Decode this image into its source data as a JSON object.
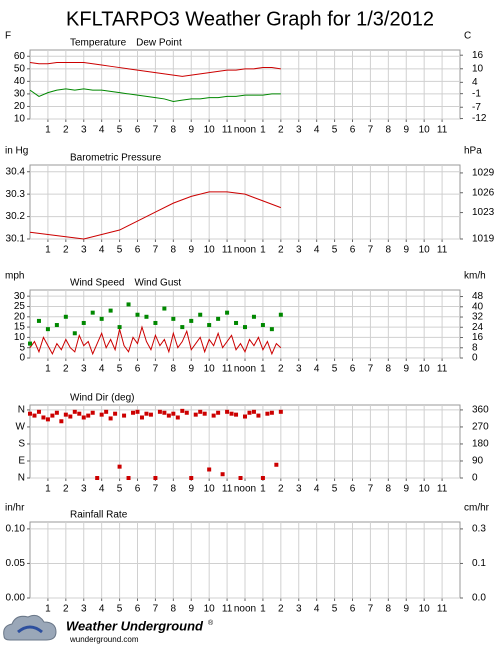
{
  "title": "KFLTARPO3 Weather Graph for 1/3/2012",
  "chart_data": [
    {
      "type": "line",
      "ylabel": "F",
      "y2label": "C",
      "xlim": [
        0,
        24
      ],
      "xticks": [
        1,
        2,
        3,
        4,
        5,
        6,
        7,
        8,
        9,
        10,
        11,
        {
          "value": 12,
          "label": "noon"
        },
        {
          "value": 13,
          "label": "1"
        },
        {
          "value": 14,
          "label": "2"
        },
        {
          "value": 15,
          "label": "3"
        },
        {
          "value": 16,
          "label": "4"
        },
        {
          "value": 17,
          "label": "5"
        },
        {
          "value": 18,
          "label": "6"
        },
        {
          "value": 19,
          "label": "7"
        },
        {
          "value": 20,
          "label": "8"
        },
        {
          "value": 21,
          "label": "9"
        },
        {
          "value": 22,
          "label": "10"
        },
        {
          "value": 23,
          "label": "11"
        }
      ],
      "ylim": [
        10,
        65
      ],
      "yticks": [
        60,
        50,
        40,
        30,
        20,
        10
      ],
      "y2lim": [
        -12.2,
        18.3
      ],
      "y2ticks": [
        16,
        10,
        4,
        -1,
        -7,
        -12
      ],
      "grid": true,
      "series": [
        {
          "name": "Temperature",
          "color": "#cc0000",
          "mode": "line",
          "x": [
            0,
            0.5,
            1,
            1.5,
            2,
            2.5,
            3,
            3.5,
            4,
            4.5,
            5,
            5.5,
            6,
            6.5,
            7,
            7.5,
            8,
            8.5,
            9,
            9.5,
            10,
            10.5,
            11,
            11.5,
            12,
            12.5,
            13,
            13.5,
            14
          ],
          "values": [
            55,
            54,
            54,
            55,
            55,
            55,
            55,
            54,
            53,
            52,
            51,
            50,
            49,
            48,
            47,
            46,
            45,
            44,
            45,
            46,
            47,
            48,
            49,
            49,
            50,
            50,
            51,
            51,
            50
          ]
        },
        {
          "name": "Dew Point",
          "color": "#008800",
          "mode": "line",
          "x": [
            0,
            0.5,
            1,
            1.5,
            2,
            2.5,
            3,
            3.5,
            4,
            4.5,
            5,
            5.5,
            6,
            6.5,
            7,
            7.5,
            8,
            8.5,
            9,
            9.5,
            10,
            10.5,
            11,
            11.5,
            12,
            12.5,
            13,
            13.5,
            14
          ],
          "values": [
            33,
            28,
            31,
            33,
            34,
            33,
            34,
            33,
            33,
            32,
            31,
            30,
            29,
            28,
            27,
            26,
            24,
            25,
            26,
            26,
            27,
            27,
            28,
            28,
            29,
            29,
            29,
            30,
            30
          ]
        }
      ]
    },
    {
      "type": "line",
      "ylabel": "in Hg",
      "y2label": "hPa",
      "xlim": [
        0,
        24
      ],
      "xticks": [
        1,
        2,
        3,
        4,
        5,
        6,
        7,
        8,
        9,
        10,
        11,
        {
          "value": 12,
          "label": "noon"
        },
        {
          "value": 13,
          "label": "1"
        },
        {
          "value": 14,
          "label": "2"
        },
        {
          "value": 15,
          "label": "3"
        },
        {
          "value": 16,
          "label": "4"
        },
        {
          "value": 17,
          "label": "5"
        },
        {
          "value": 18,
          "label": "6"
        },
        {
          "value": 19,
          "label": "7"
        },
        {
          "value": 20,
          "label": "8"
        },
        {
          "value": 21,
          "label": "9"
        },
        {
          "value": 22,
          "label": "10"
        },
        {
          "value": 23,
          "label": "11"
        }
      ],
      "ylim": [
        30.1,
        30.43
      ],
      "yticks": [
        30.4,
        30.3,
        30.2,
        30.1
      ],
      "y2lim": [
        1019,
        1030.2
      ],
      "y2ticks": [
        1029,
        1026,
        1023,
        1019
      ],
      "grid": true,
      "series": [
        {
          "name": "Barometric Pressure",
          "color": "#cc0000",
          "mode": "line",
          "x": [
            0,
            1,
            2,
            3,
            4,
            5,
            6,
            7,
            8,
            9,
            10,
            11,
            12,
            13,
            14
          ],
          "values": [
            30.13,
            30.12,
            30.11,
            30.1,
            30.12,
            30.14,
            30.18,
            30.22,
            30.26,
            30.29,
            30.31,
            30.31,
            30.3,
            30.27,
            30.24
          ]
        }
      ]
    },
    {
      "type": "line",
      "ylabel": "mph",
      "y2label": "km/h",
      "xlim": [
        0,
        24
      ],
      "xticks": [
        1,
        2,
        3,
        4,
        5,
        6,
        7,
        8,
        9,
        10,
        11,
        {
          "value": 12,
          "label": "noon"
        },
        {
          "value": 13,
          "label": "1"
        },
        {
          "value": 14,
          "label": "2"
        },
        {
          "value": 15,
          "label": "3"
        },
        {
          "value": 16,
          "label": "4"
        },
        {
          "value": 17,
          "label": "5"
        },
        {
          "value": 18,
          "label": "6"
        },
        {
          "value": 19,
          "label": "7"
        },
        {
          "value": 20,
          "label": "8"
        },
        {
          "value": 21,
          "label": "9"
        },
        {
          "value": 22,
          "label": "10"
        },
        {
          "value": 23,
          "label": "11"
        }
      ],
      "ylim": [
        0,
        33
      ],
      "yticks": [
        30,
        25,
        20,
        15,
        10,
        5,
        0
      ],
      "y2lim": [
        0,
        53.1
      ],
      "y2ticks": [
        48,
        40,
        32,
        24,
        16,
        8,
        0
      ],
      "grid": true,
      "series": [
        {
          "name": "Wind Speed",
          "color": "#cc0000",
          "mode": "line",
          "x": [
            0,
            0.25,
            0.5,
            0.75,
            1,
            1.25,
            1.5,
            1.75,
            2,
            2.25,
            2.5,
            2.75,
            3,
            3.25,
            3.5,
            3.75,
            4,
            4.25,
            4.5,
            4.75,
            5,
            5.25,
            5.5,
            5.75,
            6,
            6.25,
            6.5,
            6.75,
            7,
            7.25,
            7.5,
            7.75,
            8,
            8.25,
            8.5,
            8.75,
            9,
            9.25,
            9.5,
            9.75,
            10,
            10.25,
            10.5,
            10.75,
            11,
            11.25,
            11.5,
            11.75,
            12,
            12.25,
            12.5,
            12.75,
            13,
            13.25,
            13.5,
            13.75,
            14
          ],
          "values": [
            5,
            8,
            3,
            10,
            6,
            2,
            7,
            4,
            9,
            5,
            3,
            11,
            6,
            8,
            2,
            7,
            12,
            5,
            9,
            4,
            14,
            6,
            3,
            10,
            7,
            15,
            8,
            4,
            11,
            6,
            9,
            3,
            12,
            5,
            8,
            13,
            4,
            7,
            10,
            3,
            9,
            6,
            12,
            5,
            8,
            11,
            4,
            7,
            3,
            9,
            6,
            10,
            4,
            8,
            2,
            7,
            5
          ]
        },
        {
          "name": "Wind Gust",
          "color": "#008800",
          "mode": "markers",
          "x": [
            0,
            0.5,
            1,
            1.5,
            2,
            2.5,
            3,
            3.5,
            4,
            4.5,
            5,
            5.5,
            6,
            6.5,
            7,
            7.5,
            8,
            8.5,
            9,
            9.5,
            10,
            10.5,
            11,
            11.5,
            12,
            12.5,
            13,
            13.5,
            14
          ],
          "values": [
            7,
            18,
            14,
            16,
            20,
            12,
            17,
            22,
            19,
            23,
            15,
            26,
            21,
            20,
            17,
            24,
            19,
            15,
            18,
            21,
            16,
            19,
            22,
            17,
            15,
            20,
            16,
            14,
            21
          ]
        }
      ]
    },
    {
      "type": "scatter",
      "xlim": [
        0,
        24
      ],
      "xticks": [
        1,
        2,
        3,
        4,
        5,
        6,
        7,
        8,
        9,
        10,
        11,
        {
          "value": 12,
          "label": "noon"
        },
        {
          "value": 13,
          "label": "1"
        },
        {
          "value": 14,
          "label": "2"
        },
        {
          "value": 15,
          "label": "3"
        },
        {
          "value": 16,
          "label": "4"
        },
        {
          "value": 17,
          "label": "5"
        },
        {
          "value": 18,
          "label": "6"
        },
        {
          "value": 19,
          "label": "7"
        },
        {
          "value": 20,
          "label": "8"
        },
        {
          "value": 21,
          "label": "9"
        },
        {
          "value": 22,
          "label": "10"
        },
        {
          "value": 23,
          "label": "11"
        }
      ],
      "ylim": [
        0,
        386
      ],
      "yticks": [
        {
          "value": 360,
          "label": "N"
        },
        {
          "value": 270,
          "label": "W"
        },
        {
          "value": 180,
          "label": "S"
        },
        {
          "value": 90,
          "label": "E"
        },
        {
          "value": 0,
          "label": "N"
        }
      ],
      "y2lim": [
        0,
        386
      ],
      "y2ticks": [
        360,
        270,
        180,
        90,
        0
      ],
      "grid": true,
      "series": [
        {
          "name": "Wind Dir (deg)",
          "color": "#cc0000",
          "mode": "markers",
          "x": [
            0,
            0.25,
            0.5,
            0.75,
            1,
            1.25,
            1.5,
            1.75,
            2,
            2.25,
            2.5,
            2.75,
            3,
            3.25,
            3.5,
            3.75,
            4,
            4.25,
            4.5,
            4.75,
            5,
            5.25,
            5.5,
            5.75,
            6,
            6.25,
            6.5,
            6.75,
            7,
            7.25,
            7.5,
            7.75,
            8,
            8.25,
            8.5,
            8.75,
            9,
            9.25,
            9.5,
            9.75,
            10,
            10.25,
            10.5,
            10.75,
            11,
            11.25,
            11.5,
            11.75,
            12,
            12.25,
            12.5,
            12.75,
            13,
            13.25,
            13.5,
            13.75,
            14
          ],
          "values": [
            340,
            330,
            350,
            320,
            310,
            330,
            345,
            300,
            335,
            325,
            350,
            340,
            320,
            330,
            345,
            0,
            335,
            350,
            315,
            340,
            60,
            330,
            0,
            345,
            350,
            320,
            340,
            335,
            0,
            350,
            345,
            330,
            340,
            320,
            355,
            345,
            0,
            335,
            350,
            340,
            45,
            330,
            345,
            20,
            350,
            340,
            335,
            0,
            325,
            345,
            350,
            330,
            0,
            340,
            345,
            70,
            350
          ]
        }
      ]
    },
    {
      "type": "line",
      "ylabel": "in/hr",
      "y2label": "cm/hr",
      "xlim": [
        0,
        24
      ],
      "xticks": [
        1,
        2,
        3,
        4,
        5,
        6,
        7,
        8,
        9,
        10,
        11,
        {
          "value": 12,
          "label": "noon"
        },
        {
          "value": 13,
          "label": "1"
        },
        {
          "value": 14,
          "label": "2"
        },
        {
          "value": 15,
          "label": "3"
        },
        {
          "value": 16,
          "label": "4"
        },
        {
          "value": 17,
          "label": "5"
        },
        {
          "value": 18,
          "label": "6"
        },
        {
          "value": 19,
          "label": "7"
        },
        {
          "value": 20,
          "label": "8"
        },
        {
          "value": 21,
          "label": "9"
        },
        {
          "value": 22,
          "label": "10"
        },
        {
          "value": 23,
          "label": "11"
        }
      ],
      "ylim": [
        0,
        0.11
      ],
      "yticks": [
        {
          "value": 0.1,
          "label": "0.10"
        },
        {
          "value": 0.05,
          "label": "0.05"
        },
        {
          "value": 0,
          "label": "0.00"
        }
      ],
      "y2lim": [
        0,
        0.2794
      ],
      "y2ticks": [
        {
          "value": 0.254,
          "label": "0.3"
        },
        {
          "value": 0.127,
          "label": "0.1"
        },
        {
          "value": 0,
          "label": "0.0"
        }
      ],
      "grid": true,
      "series": [
        {
          "name": "Rainfall Rate",
          "color": "#cc0000",
          "mode": "line",
          "x": [],
          "values": []
        }
      ]
    }
  ],
  "footer": {
    "brand": "Weather Underground",
    "mark": "®",
    "url": "wunderground.com"
  }
}
